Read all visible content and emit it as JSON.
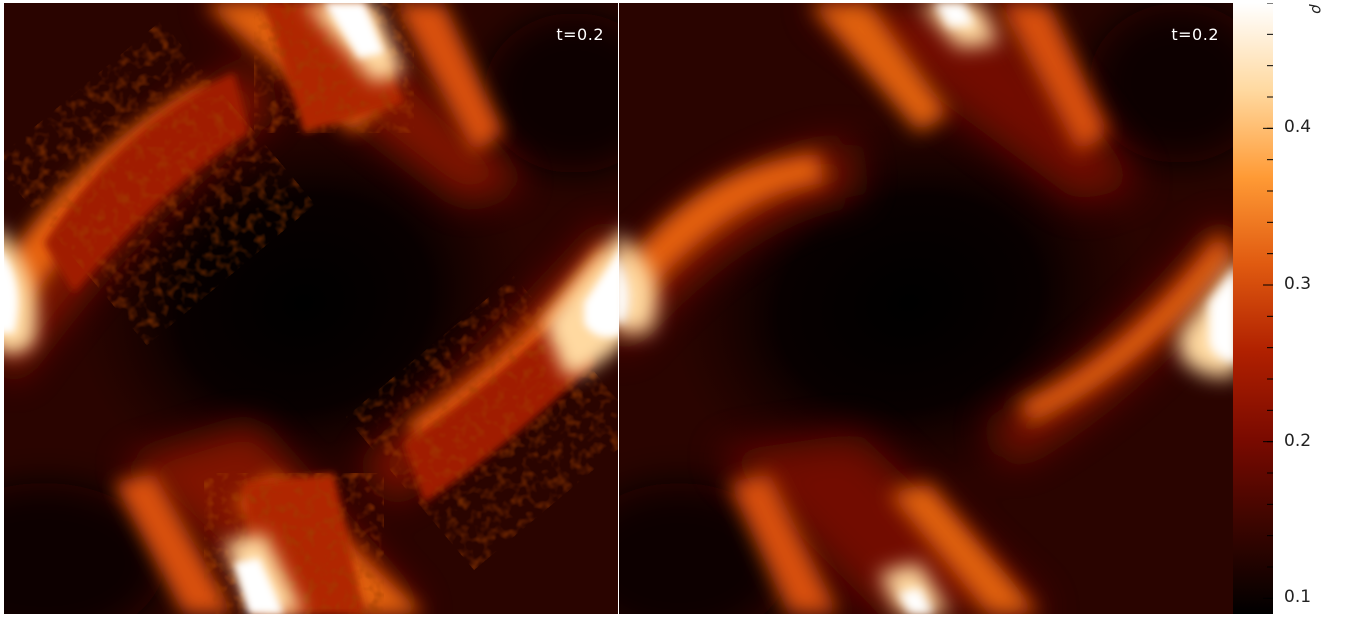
{
  "chart_data": {
    "type": "heatmap",
    "panels": [
      {
        "name": "",
        "annotation": "t=0.2"
      },
      {
        "name": "",
        "annotation": "t=0.2"
      }
    ],
    "colorbar": {
      "label": "ρ",
      "range": [
        0.09,
        0.48
      ],
      "ticks": [
        {
          "value": 0.1,
          "label": "0.1"
        },
        {
          "value": 0.2,
          "label": "0.2"
        },
        {
          "value": 0.3,
          "label": "0.3"
        },
        {
          "value": 0.4,
          "label": "0.4"
        }
      ],
      "minor_step": 0.02,
      "colormap": [
        "#000000",
        "#3a0500",
        "#7a0a00",
        "#b02000",
        "#e05a10",
        "#ff9a35",
        "#ffd9a0",
        "#ffffff"
      ]
    },
    "xlabel": "",
    "ylabel": ""
  }
}
